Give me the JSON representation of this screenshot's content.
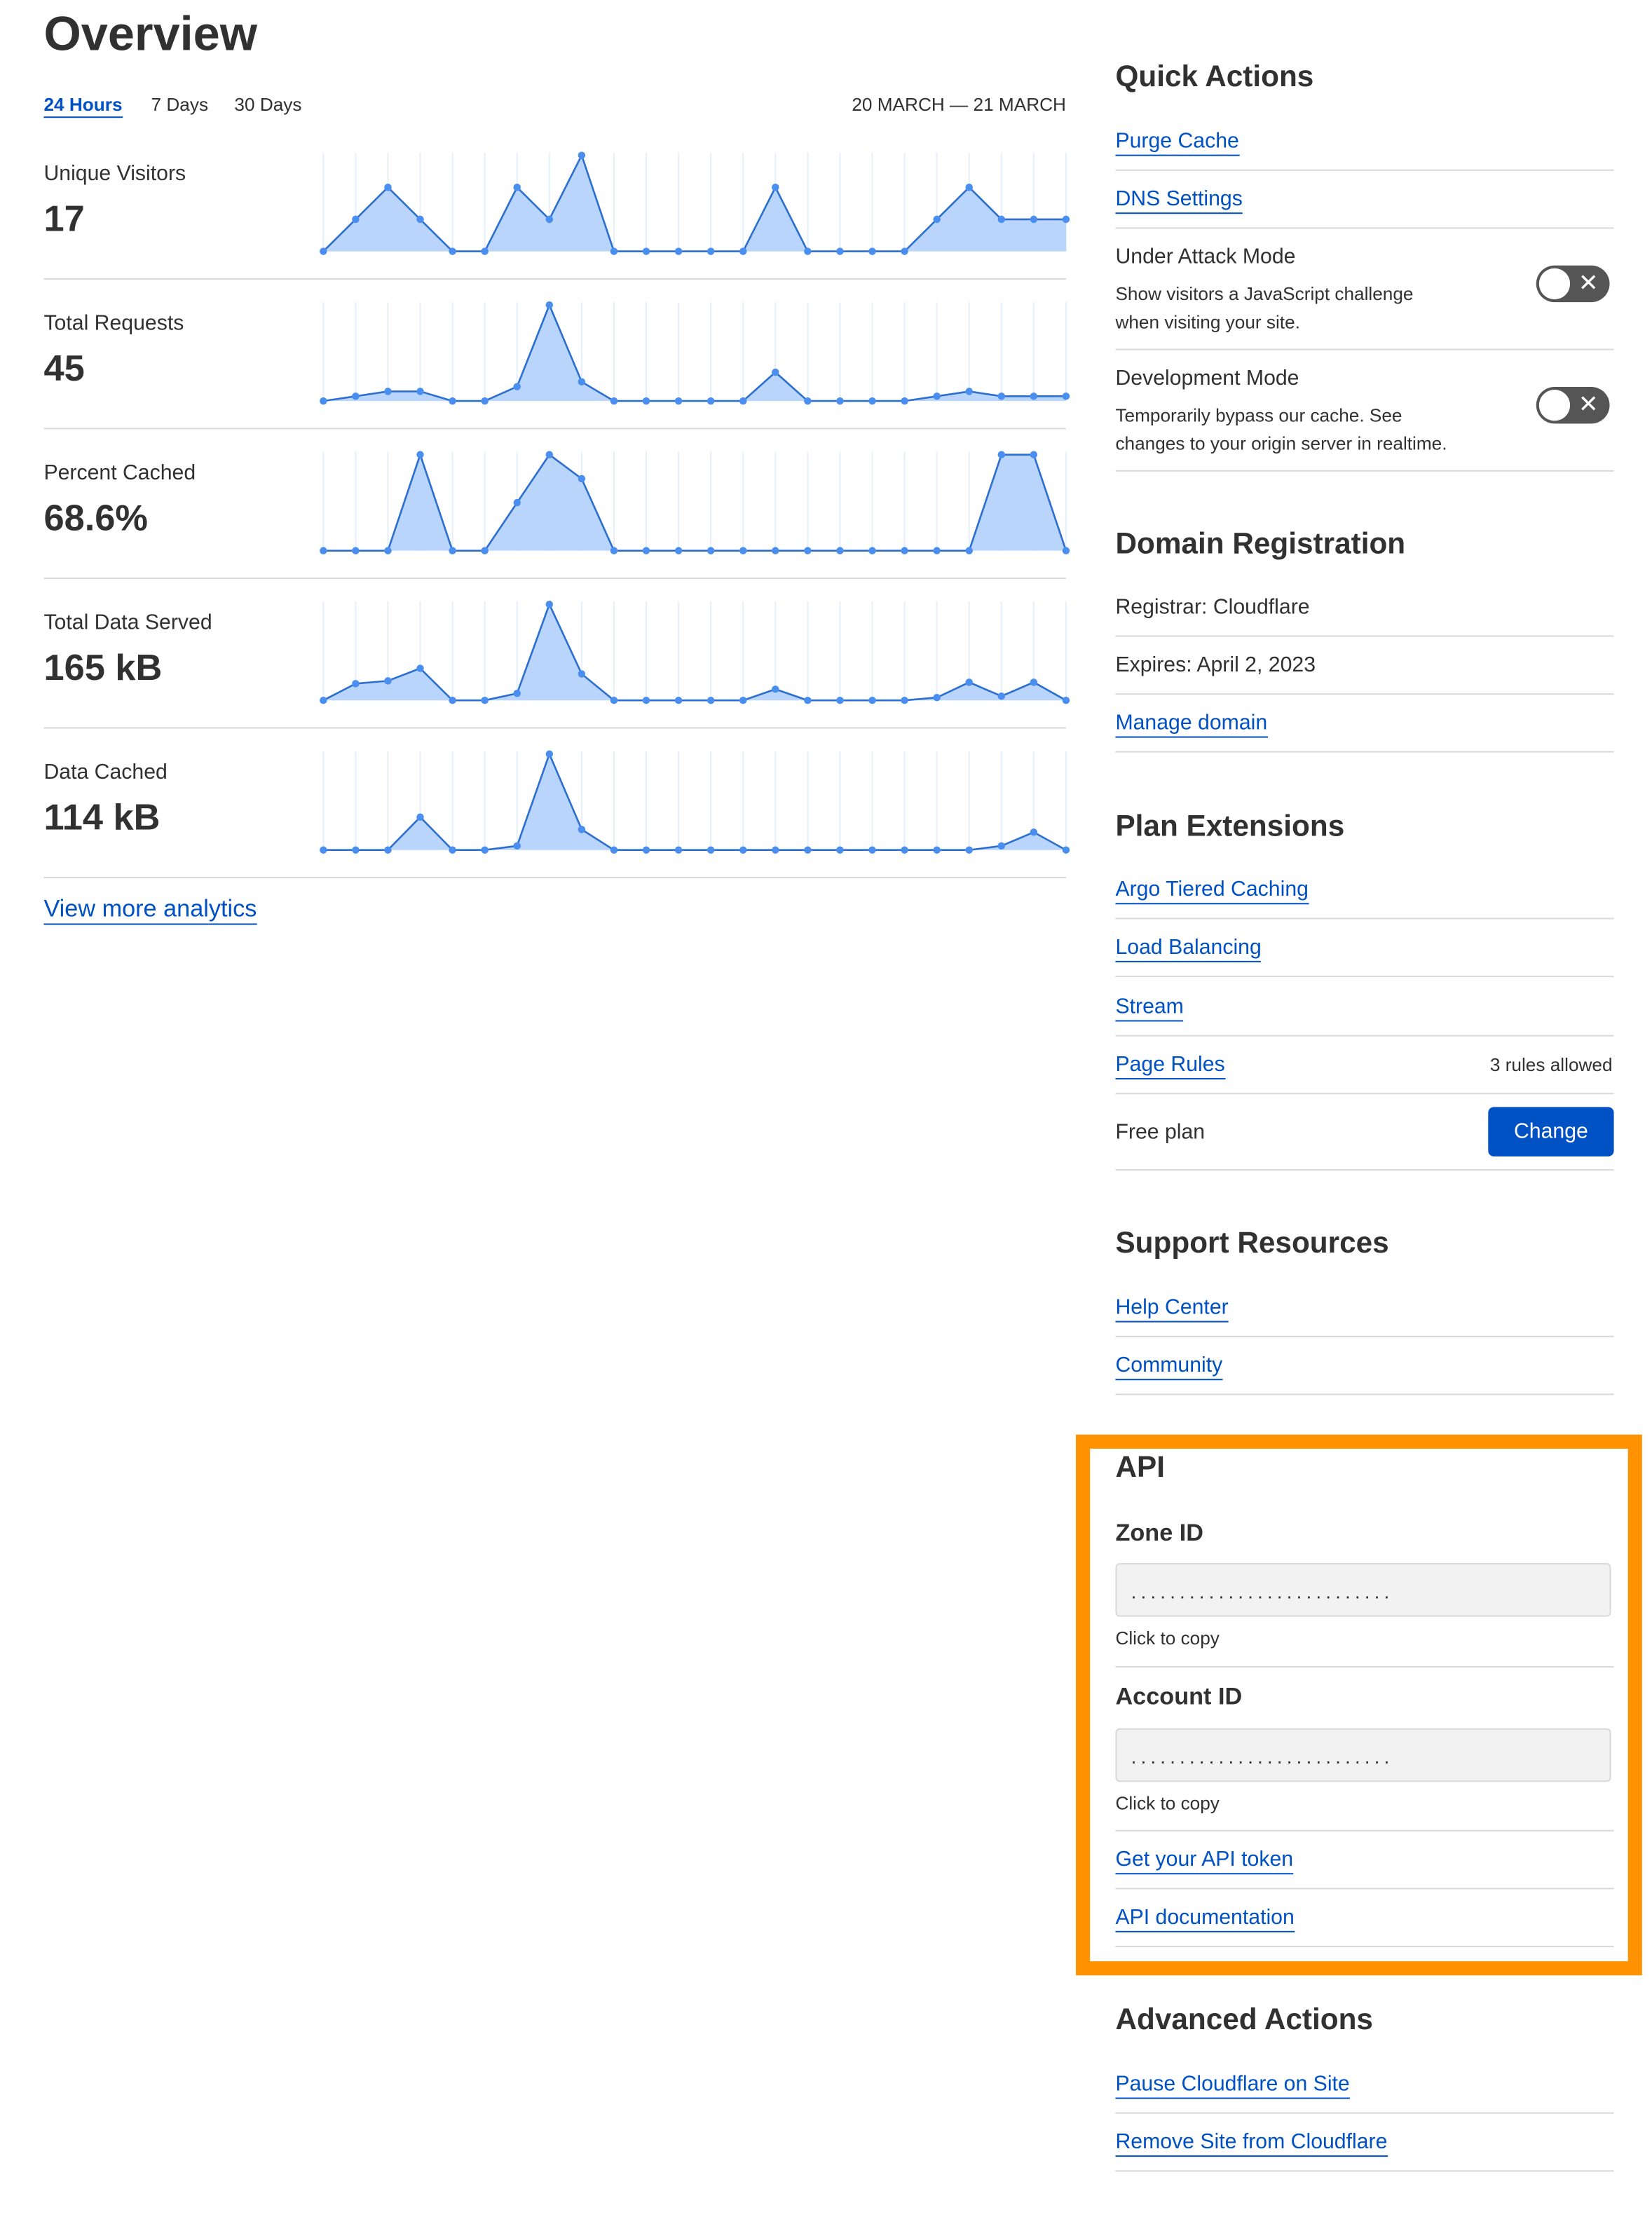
{
  "overview": {
    "title": "Overview",
    "tabs": [
      {
        "label": "24 Hours",
        "active": true
      },
      {
        "label": "7 Days",
        "active": false
      },
      {
        "label": "30 Days",
        "active": false
      }
    ],
    "date_range": "20 MARCH — 21 MARCH",
    "view_more": "View more analytics",
    "accent_color": "#0051c3",
    "chart_fill": "#b9d5fb",
    "chart_line": "#2c6fcf",
    "chart_point": "#4a8ff0"
  },
  "chart_data": [
    {
      "type": "area",
      "label": "Unique Visitors",
      "value": "17",
      "values": [
        0,
        1,
        2,
        1,
        0,
        0,
        2,
        1,
        3,
        0,
        0,
        0,
        0,
        0,
        2,
        0,
        0,
        0,
        0,
        1,
        2,
        1,
        1,
        1
      ]
    },
    {
      "type": "area",
      "label": "Total Requests",
      "value": "45",
      "values": [
        0,
        0.5,
        1,
        1,
        0,
        0,
        1.5,
        10,
        2,
        0,
        0,
        0,
        0,
        0,
        3,
        0,
        0,
        0,
        0,
        0.5,
        1,
        0.5,
        0.5,
        0.5
      ]
    },
    {
      "type": "area",
      "label": "Percent Cached",
      "value": "68.6%",
      "values": [
        0,
        0,
        0,
        100,
        0,
        0,
        50,
        100,
        75,
        0,
        0,
        0,
        0,
        0,
        0,
        0,
        0,
        0,
        0,
        0,
        0,
        100,
        100,
        0
      ]
    },
    {
      "type": "area",
      "label": "Total Data Served",
      "value": "165 kB",
      "values": [
        0,
        12,
        14,
        23,
        0,
        0,
        5,
        69,
        19,
        0,
        0,
        0,
        0,
        0,
        8,
        0,
        0,
        0,
        0,
        2,
        13,
        3,
        13,
        0
      ]
    },
    {
      "type": "area",
      "label": "Data Cached",
      "value": "114 kB",
      "values": [
        0,
        0,
        0,
        24,
        0,
        0,
        3,
        70,
        15,
        0,
        0,
        0,
        0,
        0,
        0,
        0,
        0,
        0,
        0,
        0,
        0,
        3,
        13,
        0
      ]
    }
  ],
  "quick_actions": {
    "title": "Quick Actions",
    "links": [
      "Purge Cache",
      "DNS Settings"
    ],
    "toggles": [
      {
        "label": "Under Attack Mode",
        "desc1": "Show visitors a JavaScript challenge",
        "desc2": "when visiting your site.",
        "on": false,
        "icon": "close-icon",
        "glyph": "✕"
      },
      {
        "label": "Development Mode",
        "desc1": "Temporarily bypass our cache. See",
        "desc2": "changes to your origin server in realtime.",
        "on": false,
        "icon": "close-icon",
        "glyph": "✕"
      }
    ]
  },
  "domain": {
    "title": "Domain Registration",
    "registrar": "Registrar: Cloudflare",
    "expires": "Expires: April 2, 2023",
    "manage": "Manage domain"
  },
  "plan": {
    "title": "Plan Extensions",
    "links": [
      "Argo Tiered Caching",
      "Load Balancing",
      "Stream",
      "Page Rules"
    ],
    "page_rules_note": "3 rules allowed",
    "plan_name": "Free plan",
    "change": "Change"
  },
  "support": {
    "title": "Support Resources",
    "links": [
      "Help Center",
      "Community"
    ]
  },
  "api": {
    "title": "API",
    "highlight_color": "#ff9200",
    "zone_label": "Zone ID",
    "zone_value": "...........................",
    "account_label": "Account ID",
    "account_value": "...........................",
    "copy_hint": "Click to copy",
    "links": [
      "Get your API token",
      "API documentation"
    ]
  },
  "advanced": {
    "title": "Advanced Actions",
    "links": [
      "Pause Cloudflare on Site",
      "Remove Site from Cloudflare"
    ]
  }
}
